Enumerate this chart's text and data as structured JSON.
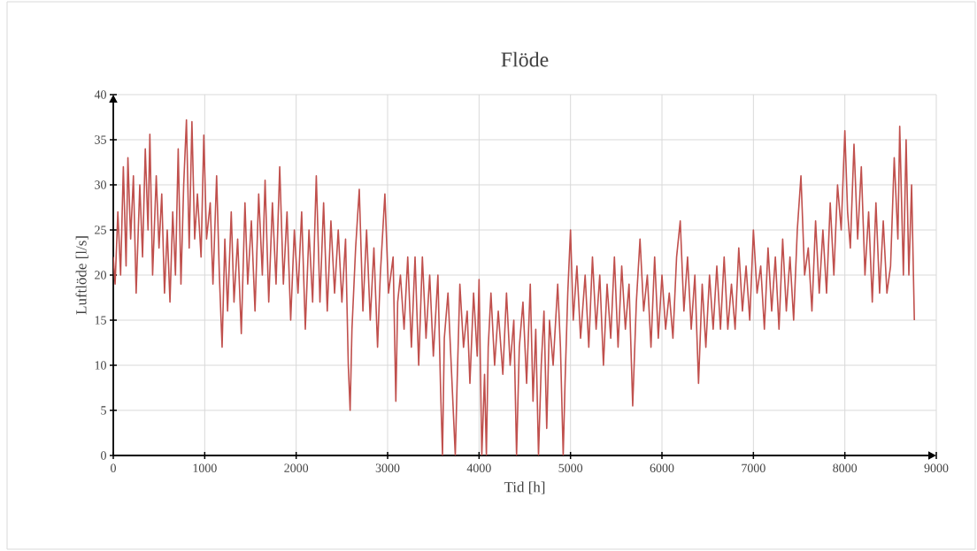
{
  "chart_data": {
    "type": "line",
    "title": "Flöde",
    "xlabel": "Tid [h]",
    "ylabel": "Luftlöde [l/s]",
    "color": "#c0504d",
    "grid": true,
    "marker": "none",
    "line_style": "solid",
    "xlim": [
      0,
      9000
    ],
    "ylim": [
      0,
      40
    ],
    "xticks": [
      0,
      1000,
      2000,
      3000,
      4000,
      5000,
      6000,
      7000,
      8000,
      9000
    ],
    "yticks": [
      0,
      5,
      10,
      15,
      20,
      25,
      30,
      35,
      40
    ],
    "x": [
      0,
      20,
      50,
      80,
      110,
      140,
      160,
      190,
      220,
      250,
      290,
      320,
      350,
      380,
      400,
      430,
      470,
      500,
      530,
      560,
      590,
      620,
      650,
      680,
      710,
      740,
      770,
      800,
      830,
      860,
      890,
      920,
      960,
      990,
      1020,
      1060,
      1090,
      1130,
      1160,
      1190,
      1220,
      1250,
      1290,
      1320,
      1360,
      1400,
      1440,
      1470,
      1510,
      1550,
      1590,
      1630,
      1660,
      1700,
      1740,
      1780,
      1820,
      1860,
      1900,
      1940,
      1980,
      2020,
      2060,
      2100,
      2140,
      2180,
      2220,
      2260,
      2300,
      2340,
      2380,
      2420,
      2460,
      2500,
      2540,
      2570,
      2590,
      2610,
      2650,
      2690,
      2730,
      2770,
      2810,
      2850,
      2890,
      2920,
      2970,
      3010,
      3060,
      3090,
      3110,
      3140,
      3180,
      3220,
      3260,
      3300,
      3340,
      3380,
      3420,
      3460,
      3500,
      3550,
      3580,
      3600,
      3620,
      3660,
      3700,
      3740,
      3760,
      3790,
      3830,
      3870,
      3900,
      3940,
      3980,
      4000,
      4030,
      4060,
      4080,
      4100,
      4130,
      4170,
      4210,
      4260,
      4300,
      4340,
      4380,
      4410,
      4440,
      4480,
      4520,
      4560,
      4590,
      4620,
      4650,
      4680,
      4710,
      4740,
      4770,
      4810,
      4860,
      4890,
      4920,
      4940,
      4970,
      5000,
      5030,
      5070,
      5110,
      5160,
      5200,
      5240,
      5280,
      5320,
      5360,
      5400,
      5440,
      5480,
      5520,
      5560,
      5600,
      5640,
      5680,
      5720,
      5760,
      5800,
      5840,
      5880,
      5920,
      5960,
      6000,
      6040,
      6080,
      6120,
      6160,
      6200,
      6240,
      6280,
      6320,
      6360,
      6400,
      6440,
      6480,
      6520,
      6560,
      6600,
      6640,
      6680,
      6720,
      6760,
      6800,
      6840,
      6880,
      6920,
      6960,
      7000,
      7040,
      7080,
      7120,
      7160,
      7200,
      7240,
      7280,
      7320,
      7360,
      7400,
      7440,
      7480,
      7520,
      7560,
      7600,
      7640,
      7680,
      7720,
      7760,
      7800,
      7840,
      7880,
      7920,
      7960,
      8000,
      8030,
      8060,
      8100,
      8140,
      8180,
      8220,
      8260,
      8300,
      8340,
      8380,
      8420,
      8460,
      8500,
      8540,
      8580,
      8600,
      8640,
      8670,
      8700,
      8730,
      8760
    ],
    "values": [
      22,
      19,
      27,
      20,
      32,
      21,
      33,
      24,
      31,
      18,
      30,
      22,
      34,
      25,
      35.6,
      20,
      31,
      23,
      29,
      18,
      25,
      17,
      27,
      20,
      34,
      19,
      30,
      37.2,
      23,
      37,
      24,
      29,
      22,
      35.5,
      24,
      28,
      19,
      31,
      20,
      12,
      24,
      16,
      27,
      17,
      24,
      13.5,
      28,
      19,
      26,
      16,
      29,
      20,
      30.5,
      17,
      28,
      19,
      32,
      19,
      27,
      15,
      25,
      18,
      27,
      14,
      25,
      17,
      31,
      17,
      28,
      16,
      26,
      18,
      25,
      17,
      24,
      10,
      5,
      14,
      23,
      29.5,
      16,
      25,
      15,
      23,
      12,
      20,
      29,
      18,
      22,
      6,
      17,
      20,
      14,
      22,
      12,
      22,
      10,
      22,
      13,
      20,
      11,
      20,
      7,
      0,
      13,
      18,
      9,
      0,
      8,
      19,
      12,
      16,
      8,
      18,
      11,
      19.5,
      0,
      9,
      0,
      12,
      18,
      10,
      16,
      9,
      18,
      10,
      15,
      0,
      12,
      17,
      8,
      19,
      6,
      14,
      0,
      10,
      16,
      3,
      15,
      10,
      19,
      12,
      0,
      8,
      18,
      25,
      15,
      21,
      13,
      20,
      12,
      22,
      14,
      20,
      10,
      19,
      13,
      22,
      12,
      21,
      14,
      19,
      5.5,
      17,
      24,
      16,
      20,
      12,
      22,
      13,
      20,
      14,
      18,
      13,
      22,
      26,
      16,
      22,
      14,
      20,
      8,
      19,
      12,
      20,
      14,
      21,
      14,
      22,
      14,
      19,
      14,
      23,
      16,
      21,
      15,
      25,
      18,
      21,
      14,
      23,
      16,
      22,
      14,
      24,
      16,
      22,
      15,
      25,
      31,
      20,
      23,
      16,
      26,
      18,
      25,
      18,
      28,
      20,
      30,
      25,
      36,
      27,
      23,
      34.5,
      24,
      32,
      20,
      27,
      17,
      28,
      18,
      26,
      18,
      21,
      33,
      24,
      36.5,
      20,
      35,
      20,
      30,
      15
    ]
  }
}
